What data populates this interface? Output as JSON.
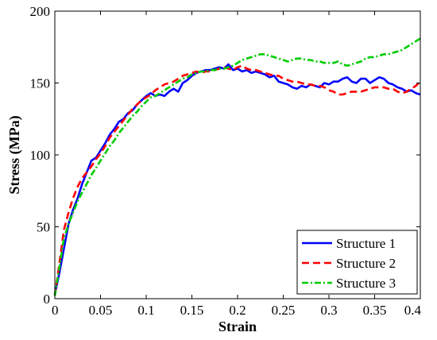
{
  "chart_data": {
    "type": "line",
    "xlabel": "Strain",
    "ylabel": "Stress (MPa)",
    "xlim": [
      0,
      0.4
    ],
    "ylim": [
      0,
      200
    ],
    "xticks": [
      0,
      0.05,
      0.1,
      0.15,
      0.2,
      0.25,
      0.3,
      0.35,
      0.4
    ],
    "xtick_labels": [
      "0",
      "0.05",
      "0.1",
      "0.15",
      "0.2",
      "0.25",
      "0.3",
      "0.35",
      "0.4"
    ],
    "yticks": [
      0,
      50,
      100,
      150,
      200
    ],
    "ytick_labels": [
      "0",
      "50",
      "100",
      "150",
      "200"
    ],
    "grid": false,
    "legend_position": "bottom-right",
    "series": [
      {
        "name": "Structure 1",
        "color": "#0000ff",
        "style": "solid",
        "x": [
          0,
          0.005,
          0.01,
          0.015,
          0.02,
          0.025,
          0.03,
          0.035,
          0.04,
          0.045,
          0.05,
          0.055,
          0.06,
          0.065,
          0.07,
          0.075,
          0.08,
          0.085,
          0.09,
          0.095,
          0.1,
          0.105,
          0.11,
          0.115,
          0.12,
          0.125,
          0.13,
          0.135,
          0.14,
          0.145,
          0.15,
          0.155,
          0.16,
          0.165,
          0.17,
          0.175,
          0.18,
          0.185,
          0.19,
          0.195,
          0.2,
          0.205,
          0.21,
          0.215,
          0.22,
          0.225,
          0.23,
          0.235,
          0.24,
          0.245,
          0.25,
          0.255,
          0.26,
          0.265,
          0.27,
          0.275,
          0.28,
          0.285,
          0.29,
          0.295,
          0.3,
          0.305,
          0.31,
          0.315,
          0.32,
          0.325,
          0.33,
          0.335,
          0.34,
          0.345,
          0.35,
          0.355,
          0.36,
          0.365,
          0.37,
          0.375,
          0.38,
          0.385,
          0.39,
          0.395,
          0.4
        ],
        "y": [
          3,
          18,
          35,
          52,
          62,
          70,
          80,
          88,
          96,
          98,
          103,
          108,
          114,
          118,
          123,
          125,
          129,
          131,
          135,
          138,
          141,
          143,
          141,
          142,
          141,
          144,
          146,
          144,
          150,
          152,
          155,
          157,
          158,
          159,
          159,
          160,
          161,
          160,
          163,
          159,
          160,
          158,
          159,
          157,
          158,
          157,
          156,
          154,
          155,
          151,
          150,
          149,
          147,
          146,
          148,
          147,
          149,
          148,
          147,
          150,
          149,
          151,
          151,
          153,
          154,
          151,
          150,
          153,
          153,
          150,
          152,
          154,
          153,
          150,
          149,
          147,
          146,
          144,
          145,
          143,
          142
        ]
      },
      {
        "name": "Structure 2",
        "color": "#ff0000",
        "style": "dashed",
        "x": [
          0,
          0.005,
          0.01,
          0.015,
          0.02,
          0.025,
          0.03,
          0.035,
          0.04,
          0.045,
          0.05,
          0.055,
          0.06,
          0.065,
          0.07,
          0.075,
          0.08,
          0.085,
          0.09,
          0.095,
          0.1,
          0.105,
          0.11,
          0.115,
          0.12,
          0.125,
          0.13,
          0.135,
          0.14,
          0.145,
          0.15,
          0.155,
          0.16,
          0.165,
          0.17,
          0.175,
          0.18,
          0.185,
          0.19,
          0.195,
          0.2,
          0.205,
          0.21,
          0.215,
          0.22,
          0.225,
          0.23,
          0.235,
          0.24,
          0.245,
          0.25,
          0.255,
          0.26,
          0.265,
          0.27,
          0.275,
          0.28,
          0.285,
          0.29,
          0.295,
          0.3,
          0.305,
          0.31,
          0.315,
          0.32,
          0.325,
          0.33,
          0.335,
          0.34,
          0.345,
          0.35,
          0.355,
          0.36,
          0.365,
          0.37,
          0.375,
          0.38,
          0.385,
          0.39,
          0.395,
          0.4
        ],
        "y": [
          2,
          25,
          48,
          60,
          70,
          78,
          84,
          88,
          92,
          97,
          101,
          106,
          112,
          116,
          120,
          124,
          128,
          132,
          135,
          138,
          140,
          142,
          145,
          147,
          149,
          150,
          151,
          153,
          155,
          156,
          157,
          158,
          157,
          158,
          158,
          159,
          160,
          161,
          160,
          159,
          161,
          162,
          160,
          159,
          159,
          158,
          157,
          156,
          155,
          155,
          153,
          152,
          151,
          151,
          150,
          149,
          149,
          148,
          148,
          147,
          145,
          144,
          142,
          142,
          143,
          144,
          144,
          144,
          145,
          146,
          147,
          147,
          147,
          146,
          146,
          144,
          143,
          144,
          146,
          148,
          151
        ]
      },
      {
        "name": "Structure 3",
        "color": "#00cc00",
        "style": "dashdot",
        "x": [
          0,
          0.005,
          0.01,
          0.015,
          0.02,
          0.025,
          0.03,
          0.035,
          0.04,
          0.045,
          0.05,
          0.055,
          0.06,
          0.065,
          0.07,
          0.075,
          0.08,
          0.085,
          0.09,
          0.095,
          0.1,
          0.105,
          0.11,
          0.115,
          0.12,
          0.125,
          0.13,
          0.135,
          0.14,
          0.145,
          0.15,
          0.155,
          0.16,
          0.165,
          0.17,
          0.175,
          0.18,
          0.185,
          0.19,
          0.195,
          0.2,
          0.205,
          0.21,
          0.215,
          0.22,
          0.225,
          0.23,
          0.235,
          0.24,
          0.245,
          0.25,
          0.255,
          0.26,
          0.265,
          0.27,
          0.275,
          0.28,
          0.285,
          0.29,
          0.295,
          0.3,
          0.305,
          0.31,
          0.315,
          0.32,
          0.325,
          0.33,
          0.335,
          0.34,
          0.345,
          0.35,
          0.355,
          0.36,
          0.365,
          0.37,
          0.375,
          0.38,
          0.385,
          0.39,
          0.395,
          0.4
        ],
        "y": [
          2,
          22,
          42,
          52,
          60,
          68,
          74,
          80,
          86,
          91,
          96,
          101,
          106,
          110,
          115,
          119,
          123,
          127,
          130,
          134,
          137,
          140,
          141,
          143,
          145,
          147,
          149,
          151,
          153,
          154,
          156,
          157,
          158,
          158,
          159,
          159,
          160,
          160,
          161,
          162,
          164,
          166,
          167,
          168,
          169,
          170,
          170,
          169,
          168,
          167,
          166,
          165,
          166,
          167,
          167,
          166,
          166,
          165,
          165,
          164,
          164,
          164,
          165,
          163,
          162,
          163,
          164,
          165,
          167,
          168,
          168,
          169,
          170,
          170,
          171,
          172,
          173,
          175,
          177,
          179,
          181
        ]
      }
    ]
  }
}
